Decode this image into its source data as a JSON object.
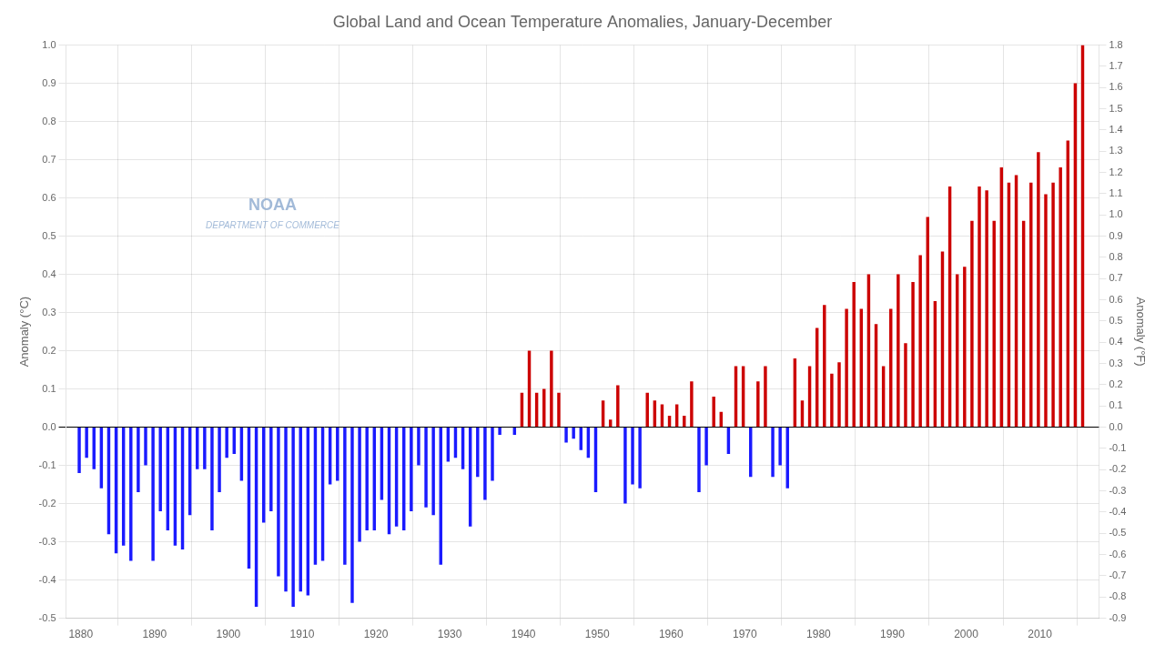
{
  "chart_data": {
    "type": "bar",
    "title": "Global Land and Ocean Temperature Anomalies, January-December",
    "ylabel": "Anomaly (°C)",
    "y2label": "Anomaly (°F)",
    "x": [
      1880,
      1881,
      1882,
      1883,
      1884,
      1885,
      1886,
      1887,
      1888,
      1889,
      1890,
      1891,
      1892,
      1893,
      1894,
      1895,
      1896,
      1897,
      1898,
      1899,
      1900,
      1901,
      1902,
      1903,
      1904,
      1905,
      1906,
      1907,
      1908,
      1909,
      1910,
      1911,
      1912,
      1913,
      1914,
      1915,
      1916,
      1917,
      1918,
      1919,
      1920,
      1921,
      1922,
      1923,
      1924,
      1925,
      1926,
      1927,
      1928,
      1929,
      1930,
      1931,
      1932,
      1933,
      1934,
      1935,
      1936,
      1937,
      1938,
      1939,
      1940,
      1941,
      1942,
      1943,
      1944,
      1945,
      1946,
      1947,
      1948,
      1949,
      1950,
      1951,
      1952,
      1953,
      1954,
      1955,
      1956,
      1957,
      1958,
      1959,
      1960,
      1961,
      1962,
      1963,
      1964,
      1965,
      1966,
      1967,
      1968,
      1969,
      1970,
      1971,
      1972,
      1973,
      1974,
      1975,
      1976,
      1977,
      1978,
      1979,
      1980,
      1981,
      1982,
      1983,
      1984,
      1985,
      1986,
      1987,
      1988,
      1989,
      1990,
      1991,
      1992,
      1993,
      1994,
      1995,
      1996,
      1997,
      1998,
      1999,
      2000,
      2001,
      2002,
      2003,
      2004,
      2005,
      2006,
      2007,
      2008,
      2009,
      2010,
      2011,
      2012,
      2013,
      2014,
      2015,
      2016
    ],
    "values": [
      -0.12,
      -0.08,
      -0.11,
      -0.16,
      -0.28,
      -0.33,
      -0.31,
      -0.35,
      -0.17,
      -0.1,
      -0.35,
      -0.22,
      -0.27,
      -0.31,
      -0.32,
      -0.23,
      -0.11,
      -0.11,
      -0.27,
      -0.17,
      -0.08,
      -0.07,
      -0.14,
      -0.37,
      -0.47,
      -0.25,
      -0.22,
      -0.39,
      -0.43,
      -0.47,
      -0.43,
      -0.44,
      -0.36,
      -0.35,
      -0.15,
      -0.14,
      -0.36,
      -0.46,
      -0.3,
      -0.27,
      -0.27,
      -0.19,
      -0.28,
      -0.26,
      -0.27,
      -0.22,
      -0.1,
      -0.21,
      -0.23,
      -0.36,
      -0.09,
      -0.08,
      -0.11,
      -0.26,
      -0.13,
      -0.19,
      -0.14,
      -0.02,
      -0.0,
      -0.02,
      0.09,
      0.2,
      0.09,
      0.1,
      0.2,
      0.09,
      -0.04,
      -0.03,
      -0.06,
      -0.08,
      -0.17,
      0.07,
      0.02,
      0.11,
      -0.2,
      -0.15,
      -0.16,
      0.09,
      0.07,
      0.06,
      0.03,
      0.06,
      0.03,
      0.12,
      -0.17,
      -0.1,
      0.08,
      0.04,
      -0.07,
      0.16,
      0.16,
      -0.13,
      0.12,
      0.16,
      -0.13,
      -0.1,
      -0.16,
      0.18,
      0.07,
      0.16,
      0.26,
      0.32,
      0.14,
      0.17,
      0.31,
      0.38,
      0.31,
      0.4,
      0.27,
      0.16,
      0.31,
      0.4,
      0.22,
      0.38,
      0.45,
      0.55,
      0.33,
      0.46,
      0.63,
      0.4,
      0.42,
      0.54,
      0.63,
      0.62,
      0.54,
      0.68,
      0.64,
      0.66,
      0.54,
      0.64,
      0.72,
      0.61,
      0.64,
      0.68,
      0.75,
      0.9,
      1.0
    ],
    "colors": [
      "#1a1aff",
      "#1a1aff",
      "#1a1aff",
      "#1a1aff",
      "#1a1aff",
      "#1a1aff",
      "#1a1aff",
      "#1a1aff",
      "#1a1aff",
      "#1a1aff",
      "#1a1aff",
      "#1a1aff",
      "#1a1aff",
      "#1a1aff",
      "#1a1aff",
      "#1a1aff",
      "#1a1aff",
      "#1a1aff",
      "#1a1aff",
      "#1a1aff",
      "#1a1aff",
      "#1a1aff",
      "#1a1aff",
      "#1a1aff",
      "#1a1aff",
      "#1a1aff",
      "#1a1aff",
      "#1a1aff",
      "#1a1aff",
      "#1a1aff",
      "#1a1aff",
      "#1a1aff",
      "#1a1aff",
      "#1a1aff",
      "#1a1aff",
      "#1a1aff",
      "#1a1aff",
      "#1a1aff",
      "#1a1aff",
      "#1a1aff",
      "#1a1aff",
      "#1a1aff",
      "#1a1aff",
      "#1a1aff",
      "#1a1aff",
      "#1a1aff",
      "#1a1aff",
      "#1a1aff",
      "#1a1aff",
      "#1a1aff",
      "#1a1aff",
      "#1a1aff",
      "#1a1aff",
      "#1a1aff",
      "#1a1aff",
      "#1a1aff",
      "#1a1aff",
      "#1a1aff",
      "#cc0000",
      "#1a1aff",
      "#cc0000",
      "#cc0000",
      "#cc0000",
      "#cc0000",
      "#cc0000",
      "#cc0000",
      "#1a1aff",
      "#1a1aff",
      "#1a1aff",
      "#1a1aff",
      "#1a1aff",
      "#cc0000",
      "#cc0000",
      "#cc0000",
      "#1a1aff",
      "#1a1aff",
      "#1a1aff",
      "#cc0000",
      "#cc0000",
      "#cc0000",
      "#cc0000",
      "#cc0000",
      "#cc0000",
      "#cc0000",
      "#1a1aff",
      "#1a1aff",
      "#cc0000",
      "#cc0000",
      "#1a1aff",
      "#cc0000",
      "#cc0000",
      "#1a1aff",
      "#cc0000",
      "#cc0000",
      "#1a1aff",
      "#1a1aff",
      "#1a1aff",
      "#cc0000",
      "#cc0000",
      "#cc0000",
      "#cc0000",
      "#cc0000",
      "#cc0000",
      "#cc0000",
      "#cc0000",
      "#cc0000",
      "#cc0000",
      "#cc0000",
      "#cc0000",
      "#cc0000",
      "#cc0000",
      "#cc0000",
      "#cc0000",
      "#cc0000",
      "#cc0000",
      "#cc0000",
      "#cc0000",
      "#cc0000",
      "#cc0000",
      "#cc0000",
      "#cc0000",
      "#cc0000",
      "#cc0000",
      "#cc0000",
      "#cc0000",
      "#cc0000",
      "#cc0000",
      "#cc0000",
      "#cc0000",
      "#cc0000",
      "#cc0000",
      "#cc0000",
      "#cc0000",
      "#cc0000",
      "#cc0000",
      "#cc0000",
      "#cc0000"
    ],
    "xlim": [
      1878,
      2018
    ],
    "xticks": [
      1880,
      1890,
      1900,
      1910,
      1920,
      1930,
      1940,
      1950,
      1960,
      1970,
      1980,
      1990,
      2000,
      2010
    ],
    "ylim": [
      -0.5,
      1.0
    ],
    "yticks": [
      -0.5,
      -0.4,
      -0.3,
      -0.2,
      -0.1,
      {
        "value": 0.0,
        "label": "0.0"
      },
      0.1,
      0.2,
      0.3,
      0.4,
      0.5,
      0.6,
      0.7,
      0.8,
      0.9,
      {
        "value": 1.0,
        "label": "1.0"
      }
    ],
    "y2lim": [
      -0.9,
      1.8
    ],
    "y2ticks": [
      -0.9,
      -0.8,
      -0.7,
      -0.6,
      -0.5,
      -0.4,
      -0.3,
      -0.2,
      -0.1,
      {
        "value": 0.0,
        "label": "0.0"
      },
      0.1,
      0.2,
      0.3,
      0.4,
      0.5,
      0.6,
      0.7,
      0.8,
      0.9,
      {
        "value": 1.0,
        "label": "1.0"
      },
      1.1,
      1.2,
      1.3,
      1.4,
      1.5,
      1.6,
      1.7,
      1.8
    ],
    "grid": true,
    "annotations": [
      "NOAA",
      "DEPARTMENT OF COMMERCE"
    ]
  }
}
